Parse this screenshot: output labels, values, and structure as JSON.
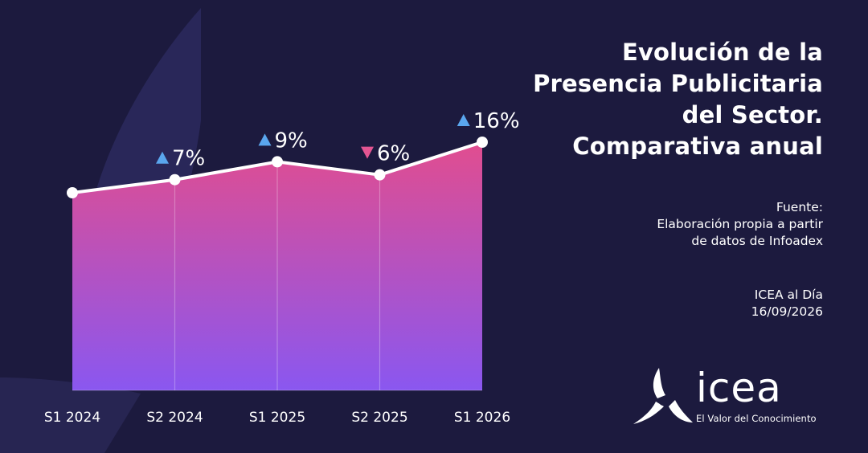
{
  "title_lines": [
    "Evolución de la",
    "Presencia Publicitaria",
    "del Sector.",
    "Comparativa anual"
  ],
  "source": {
    "label": "Fuente:",
    "line1": "Elaboración propia a partir",
    "line2": "de datos de Infoadex"
  },
  "issue": {
    "publication": "ICEA al Día",
    "date": "16/09/2026"
  },
  "logo": {
    "word": "icea",
    "tagline": "El Valor del Conocimiento",
    "icon": "icea-propeller-icon"
  },
  "colors": {
    "background": "#1c1a3e",
    "area_top": "#e14d8f",
    "area_bottom": "#8a57f0",
    "line": "#ffffff",
    "up_marker": "#5aa6ee",
    "down_marker": "#e35592"
  },
  "chart_data": {
    "type": "area",
    "categories": [
      "S1 2024",
      "S2 2024",
      "S1 2025",
      "S2 2025",
      "S1 2026"
    ],
    "values": [
      100,
      107,
      116.6,
      109.6,
      127.1
    ],
    "data_labels": [
      "",
      "7%",
      "9%",
      "6%",
      "16%"
    ],
    "directions": [
      "",
      "up",
      "up",
      "down",
      "up"
    ],
    "y_axis_visible": false,
    "grid": "vertical",
    "legend": "none"
  }
}
